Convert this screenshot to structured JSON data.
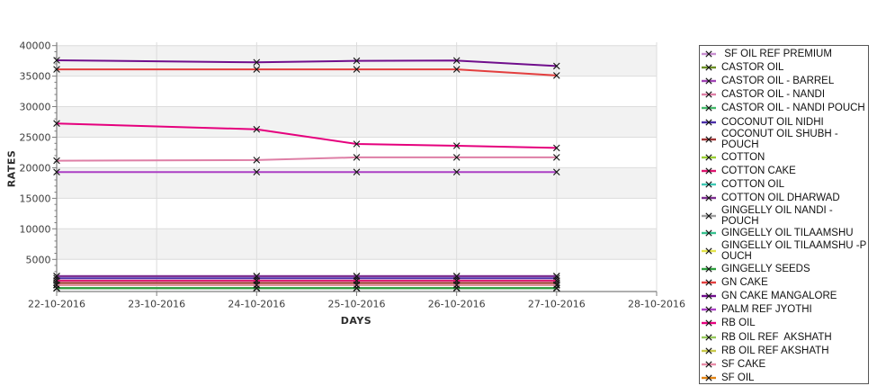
{
  "chart_data": {
    "type": "line",
    "title": "",
    "xlabel": "DAYS",
    "ylabel": "RATES",
    "x_tick_labels": [
      "22-10-2016",
      "23-10-2016",
      "24-10-2016",
      "25-10-2016",
      "26-10-2016",
      "27-10-2016",
      "28-10-2016"
    ],
    "x_index_of_points": [
      0,
      2,
      3,
      4,
      5
    ],
    "y_ticks": [
      5000,
      10000,
      15000,
      20000,
      25000,
      30000,
      35000,
      40000
    ],
    "y_minor_step": 1000,
    "ylim": [
      -265,
      40540
    ],
    "band_step": 5000,
    "band_color_odd": "#f2f2f2",
    "band_color_even": "#ffffff",
    "gridline_color": "#dcdcdc",
    "axis_color": "#7f7f7f",
    "marker_color": "#141414",
    "legend_position": "right",
    "grid": true,
    "series": [
      {
        "name": "SF OIL REF PREMIUM",
        "color": "#C98FD0",
        "z": 0,
        "values": [
          800,
          800,
          800,
          800,
          800
        ]
      },
      {
        "name": "CASTOR OIL",
        "color": "#6B8E23",
        "z": 0,
        "values": [
          300,
          300,
          300,
          300,
          300
        ]
      },
      {
        "name": "CASTOR OIL - BARREL",
        "color": "#A044B4",
        "z": 0,
        "values": [
          2250,
          2250,
          2250,
          2250,
          2250
        ]
      },
      {
        "name": "CASTOR OIL - NANDI",
        "color": "#DE7FA6",
        "z": 1,
        "values": [
          21150,
          21250,
          21700,
          21700,
          21700
        ]
      },
      {
        "name": "CASTOR OIL - NANDI POUCH",
        "color": "#44B86A",
        "z": 0,
        "values": [
          300,
          300,
          300,
          300,
          300
        ]
      },
      {
        "name": "COCONUT OIL NIDHI",
        "color": "#4B2FA8",
        "z": 1,
        "values": [
          1900,
          1900,
          1900,
          1900,
          1900
        ]
      },
      {
        "name": "COCONUT OIL SHUBH -POUCH",
        "color": "#A03434",
        "z": 1,
        "values": [
          1150,
          1150,
          1150,
          1150,
          1150
        ]
      },
      {
        "name": "COTTON",
        "color": "#9ACD32",
        "z": 0,
        "values": [
          300,
          300,
          300,
          300,
          300
        ]
      },
      {
        "name": "COTTON CAKE",
        "color": "#DC146E",
        "z": 1,
        "values": [
          1520,
          1520,
          1520,
          1520,
          1520
        ]
      },
      {
        "name": "COTTON OIL",
        "color": "#3EC8B4",
        "z": 0,
        "values": [
          300,
          300,
          300,
          300,
          300
        ]
      },
      {
        "name": "COTTON OIL DHARWAD",
        "color": "#7B2D8E",
        "z": 1,
        "values": [
          2250,
          2250,
          2250,
          2250,
          2250
        ]
      },
      {
        "name": "GINGELLY OIL NANDI -POUCH",
        "color": "#9E9E9E",
        "z": 0,
        "values": [
          800,
          800,
          800,
          800,
          800
        ]
      },
      {
        "name": "GINGELLY OIL TILAAMSHU",
        "color": "#35C08E",
        "z": 0,
        "values": [
          800,
          800,
          800,
          800,
          800
        ]
      },
      {
        "name": "GINGELLY OIL TILAAMSHU -POUCH",
        "color": "#E3E34A",
        "z": 0,
        "values": [
          800,
          800,
          800,
          800,
          800
        ]
      },
      {
        "name": "GINGELLY SEEDS",
        "color": "#2E9E3E",
        "z": 1,
        "values": [
          300,
          300,
          300,
          300,
          300
        ]
      },
      {
        "name": "GN CAKE",
        "color": "#E33E3E",
        "z": 1,
        "values": [
          36100,
          36100,
          36100,
          36100,
          35100
        ]
      },
      {
        "name": "GN CAKE MANGALORE",
        "color": "#700E8C",
        "z": 1,
        "values": [
          37600,
          37250,
          37500,
          37550,
          36650
        ]
      },
      {
        "name": "PALM REF JYOTHI",
        "color": "#AB3FC4",
        "z": 1,
        "values": [
          19300,
          19300,
          19300,
          19300,
          19300
        ]
      },
      {
        "name": "RB OIL",
        "color": "#E5007D",
        "z": 1,
        "values": [
          27250,
          26300,
          23900,
          23600,
          23250
        ]
      },
      {
        "name": "RB OIL REF  AKSHATH",
        "color": "#96C85A",
        "z": 0,
        "values": [
          800,
          800,
          800,
          800,
          800
        ]
      },
      {
        "name": "RB OIL REF AKSHATH",
        "color": "#C8C84A",
        "z": 0,
        "values": [
          800,
          800,
          800,
          800,
          800
        ]
      },
      {
        "name": "SF CAKE",
        "color": "#E88CA8",
        "z": 1,
        "values": [
          800,
          800,
          800,
          800,
          800
        ]
      },
      {
        "name": "SF OIL",
        "color": "#E08214",
        "z": 0,
        "values": [
          300,
          300,
          300,
          300,
          300
        ]
      },
      {
        "name": "SF OIL REF PREMIUM",
        "color": "#2AAE9E",
        "z": 0,
        "values": [
          300,
          300,
          300,
          300,
          300
        ]
      }
    ]
  },
  "legend": {
    "items": [
      {
        "label": " SF OIL REF PREMIUM",
        "color": "#C98FD0"
      },
      {
        "label": "CASTOR OIL",
        "color": "#6B8E23"
      },
      {
        "label": "CASTOR OIL - BARREL",
        "color": "#A044B4"
      },
      {
        "label": "CASTOR OIL - NANDI",
        "color": "#DE7FA6"
      },
      {
        "label": "CASTOR OIL - NANDI POUCH",
        "color": "#44B86A"
      },
      {
        "label": "COCONUT OIL NIDHI",
        "color": "#4B2FA8"
      },
      {
        "label": "COCONUT OIL SHUBH -POUCH",
        "color": "#A03434"
      },
      {
        "label": "COTTON",
        "color": "#9ACD32"
      },
      {
        "label": "COTTON CAKE",
        "color": "#DC146E"
      },
      {
        "label": "COTTON OIL",
        "color": "#3EC8B4"
      },
      {
        "label": "COTTON OIL DHARWAD",
        "color": "#7B2D8E"
      },
      {
        "label": "GINGELLY OIL NANDI -POUCH",
        "color": "#9E9E9E"
      },
      {
        "label": "GINGELLY OIL TILAAMSHU",
        "color": "#35C08E"
      },
      {
        "label": "GINGELLY OIL TILAAMSHU -P\nOUCH",
        "color": "#E3E34A"
      },
      {
        "label": "GINGELLY SEEDS",
        "color": "#2E9E3E"
      },
      {
        "label": "GN CAKE",
        "color": "#E33E3E"
      },
      {
        "label": "GN CAKE MANGALORE",
        "color": "#700E8C"
      },
      {
        "label": "PALM REF JYOTHI",
        "color": "#AB3FC4"
      },
      {
        "label": "RB OIL",
        "color": "#E5007D"
      },
      {
        "label": "RB OIL REF  AKSHATH",
        "color": "#96C85A"
      },
      {
        "label": "RB OIL REF AKSHATH",
        "color": "#C8C84A"
      },
      {
        "label": "SF CAKE",
        "color": "#E88CA8"
      },
      {
        "label": "SF OIL",
        "color": "#E08214"
      },
      {
        "label": "SF OIL REF PREMIUM",
        "color": "#2AAE9E"
      }
    ]
  }
}
